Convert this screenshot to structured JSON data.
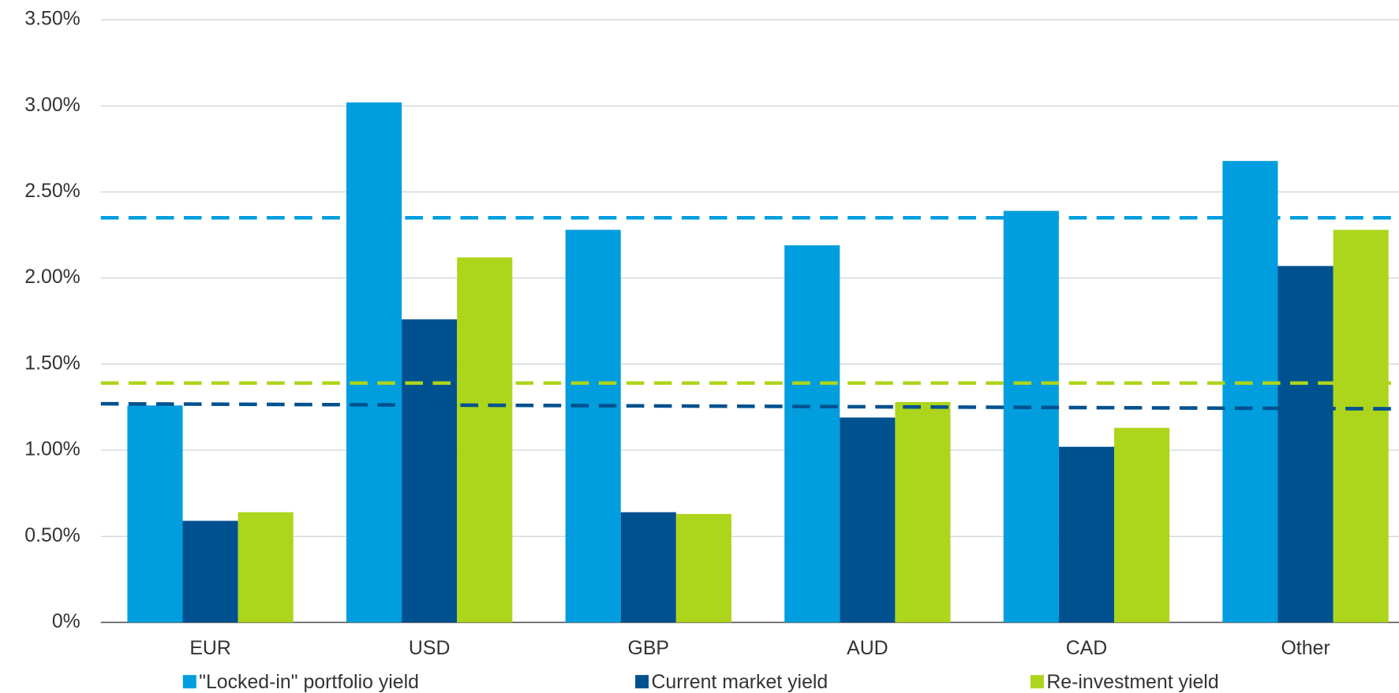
{
  "chart_data": {
    "type": "bar",
    "categories": [
      "EUR",
      "USD",
      "GBP",
      "AUD",
      "CAD",
      "Other"
    ],
    "series": [
      {
        "name": "\"Locked-in\" portfolio yield",
        "color": "#009ede",
        "values": [
          1.26,
          3.02,
          2.28,
          2.19,
          2.39,
          2.68
        ]
      },
      {
        "name": "Current market yield",
        "color": "#00518f",
        "values": [
          0.59,
          1.76,
          0.64,
          1.19,
          1.02,
          2.07
        ]
      },
      {
        "name": "Re-investment yield",
        "color": "#add51b",
        "values": [
          0.64,
          2.12,
          0.63,
          1.28,
          1.13,
          2.28
        ]
      }
    ],
    "reference_lines": [
      {
        "color": "#009ede",
        "values": [
          2.35,
          2.35
        ]
      },
      {
        "color": "#add51b",
        "values": [
          1.39,
          1.39
        ]
      },
      {
        "color": "#00518f",
        "values": [
          1.27,
          1.24
        ]
      }
    ],
    "ylim": [
      0,
      3.5
    ],
    "yticks": [
      {
        "value": 0,
        "label": "0%"
      },
      {
        "value": 0.5,
        "label": "0.50%"
      },
      {
        "value": 1,
        "label": "1.00%"
      },
      {
        "value": 1.5,
        "label": "1.50%"
      },
      {
        "value": 2,
        "label": "2.00%"
      },
      {
        "value": 2.5,
        "label": "2.50%"
      },
      {
        "value": 3,
        "label": "3.00%"
      },
      {
        "value": 3.5,
        "label": "3.50%"
      }
    ],
    "grid": true,
    "legend": "bottom"
  }
}
